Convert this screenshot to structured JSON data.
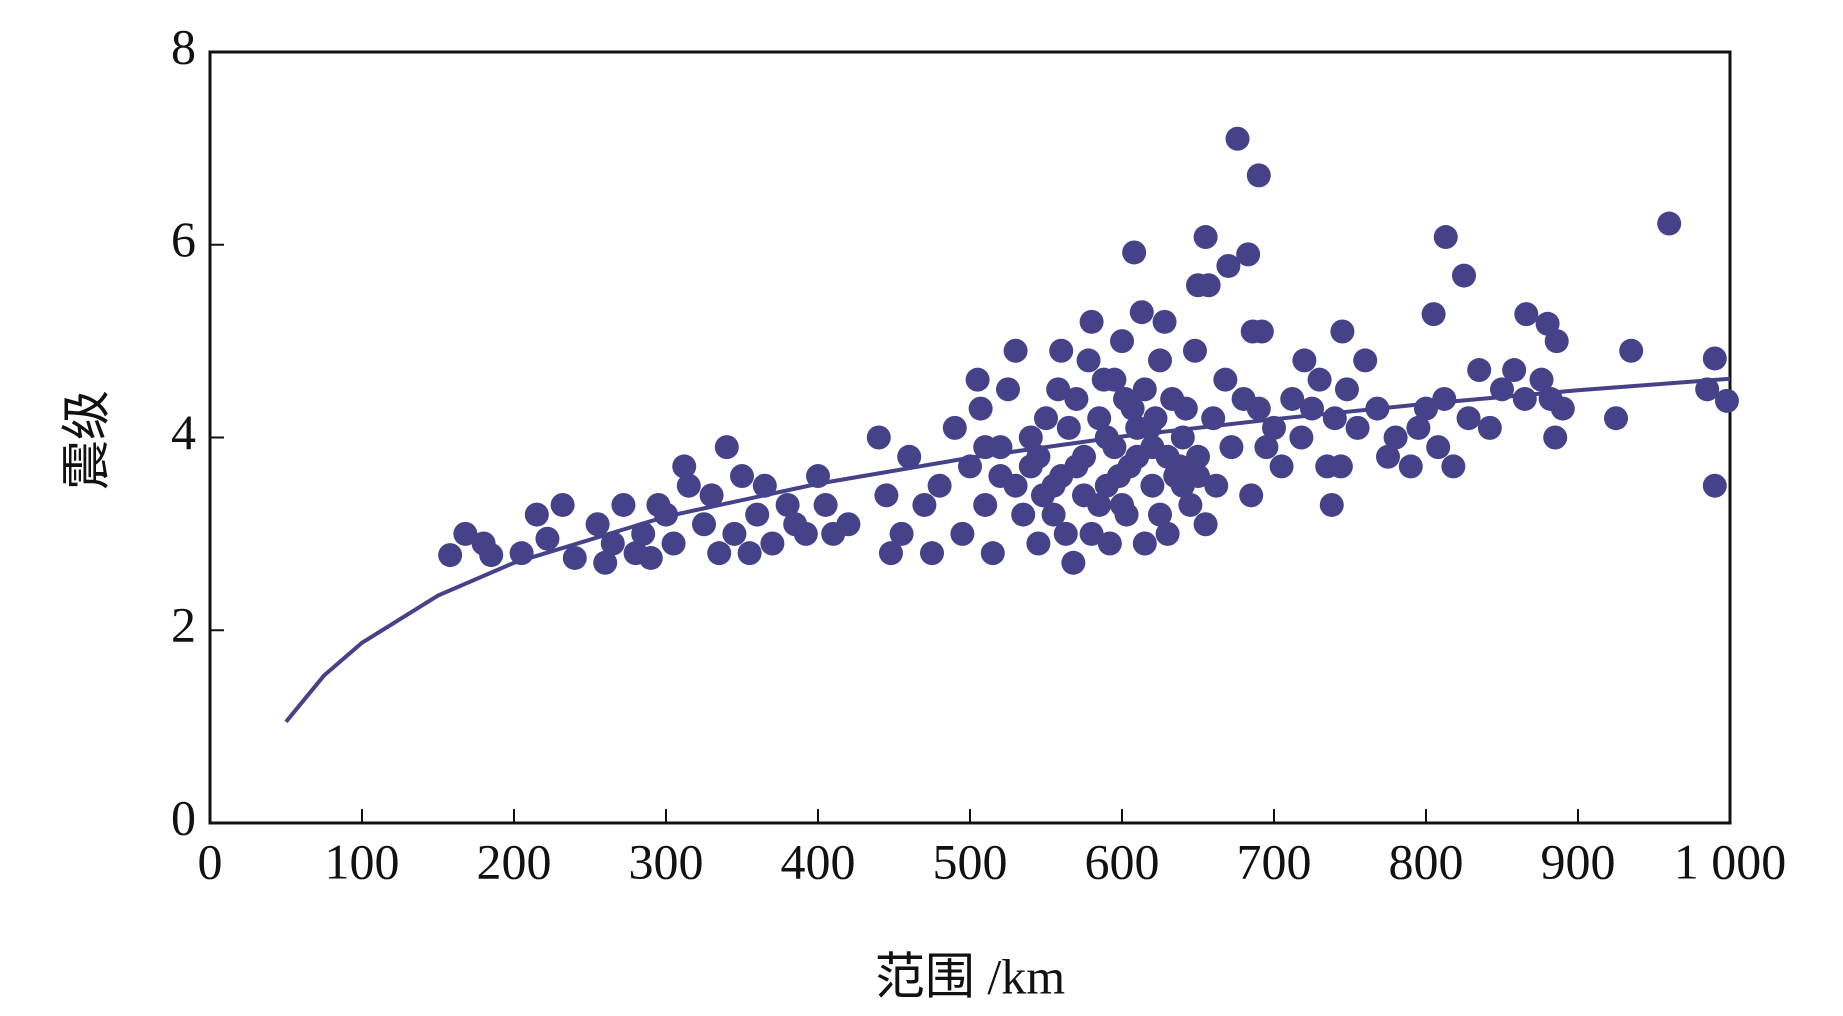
{
  "chart_data": {
    "type": "scatter",
    "x_label": "范围 /km",
    "y_label": "震级",
    "xlim": [
      0,
      1000
    ],
    "xticks": [
      0,
      100,
      200,
      300,
      400,
      500,
      600,
      700,
      800,
      900,
      {
        "value": 1000,
        "label": "1 000"
      }
    ],
    "ylim": [
      0,
      8
    ],
    "yticks": [
      0,
      2,
      4,
      6,
      8
    ],
    "series": [
      {
        "type": "scatter",
        "color": "#46428a",
        "x": [
          676,
          690,
          960,
          655,
          813,
          608,
          683,
          670,
          825,
          650,
          657,
          935,
          925,
          990,
          985,
          990,
          998,
          805,
          866,
          880,
          886,
          745,
          692,
          686,
          760,
          720,
          738,
          744,
          735,
          158,
          168,
          180,
          185,
          205,
          215,
          232,
          222,
          240,
          255,
          265,
          272,
          285,
          290,
          300,
          305,
          315,
          312,
          325,
          335,
          340,
          350,
          345,
          360,
          370,
          380,
          392,
          400,
          405,
          410,
          420,
          280,
          260,
          295,
          330,
          355,
          365,
          385,
          440,
          445,
          448,
          455,
          460,
          470,
          475,
          480,
          490,
          495,
          500,
          505,
          507,
          510,
          515,
          520,
          525,
          530,
          535,
          540,
          545,
          550,
          555,
          560,
          563,
          568,
          570,
          575,
          578,
          580,
          585,
          590,
          592,
          595,
          598,
          600,
          603,
          607,
          610,
          613,
          615,
          618,
          620,
          625,
          628,
          630,
          633,
          638,
          640,
          645,
          648,
          650,
          655,
          660,
          662,
          668,
          672,
          680,
          685,
          690,
          695,
          700,
          705,
          712,
          718,
          725,
          730,
          740,
          748,
          755,
          768,
          775,
          780,
          790,
          795,
          800,
          808,
          812,
          818,
          828,
          835,
          842,
          850,
          858,
          865,
          876,
          885,
          882,
          890,
          530,
          545,
          560,
          575,
          590,
          605,
          620,
          635,
          650,
          565,
          585,
          615,
          540,
          555,
          580,
          600,
          625,
          640,
          520,
          510,
          570,
          595,
          610,
          630,
          548,
          558,
          588,
          602,
          622,
          642
        ],
        "values": [
          7.1,
          6.72,
          6.22,
          6.08,
          6.08,
          5.92,
          5.9,
          5.78,
          5.68,
          5.58,
          5.58,
          4.9,
          4.2,
          4.82,
          4.5,
          3.5,
          4.38,
          5.28,
          5.28,
          5.18,
          5.0,
          5.1,
          5.1,
          5.1,
          4.8,
          4.8,
          3.3,
          3.7,
          3.7,
          2.78,
          3.0,
          2.9,
          2.78,
          2.8,
          3.2,
          3.3,
          2.95,
          2.75,
          3.1,
          2.9,
          3.3,
          3.0,
          2.75,
          3.2,
          2.9,
          3.5,
          3.7,
          3.1,
          2.8,
          3.9,
          3.6,
          3.0,
          3.2,
          2.9,
          3.3,
          3.0,
          3.6,
          3.3,
          3.0,
          3.1,
          2.8,
          2.7,
          3.3,
          3.4,
          2.8,
          3.5,
          3.1,
          4.0,
          3.4,
          2.8,
          3.0,
          3.8,
          3.3,
          2.8,
          3.5,
          4.1,
          3.0,
          3.7,
          4.6,
          4.3,
          3.3,
          2.8,
          3.9,
          4.5,
          4.9,
          3.2,
          3.7,
          2.9,
          4.2,
          3.5,
          4.9,
          3.0,
          2.7,
          4.4,
          3.8,
          4.8,
          5.2,
          3.3,
          4.0,
          2.9,
          4.6,
          3.6,
          5.0,
          3.2,
          4.3,
          3.8,
          5.3,
          2.9,
          4.1,
          3.5,
          4.8,
          5.2,
          3.0,
          4.4,
          3.7,
          4.0,
          3.3,
          4.9,
          3.6,
          3.1,
          4.2,
          3.5,
          4.6,
          3.9,
          4.4,
          3.4,
          4.3,
          3.9,
          4.1,
          3.7,
          4.4,
          4.0,
          4.3,
          4.6,
          4.2,
          4.5,
          4.1,
          4.3,
          3.8,
          4.0,
          3.7,
          4.1,
          4.3,
          3.9,
          4.4,
          3.7,
          4.2,
          4.7,
          4.1,
          4.5,
          4.7,
          4.4,
          4.6,
          4.0,
          4.4,
          4.3,
          3.5,
          3.8,
          3.6,
          3.4,
          3.5,
          3.7,
          3.9,
          3.6,
          3.8,
          4.1,
          4.2,
          4.5,
          4.0,
          3.2,
          3.0,
          3.3,
          3.2,
          3.5,
          3.6,
          3.9,
          3.7,
          3.9,
          4.1,
          3.8,
          3.4,
          4.5,
          4.6,
          4.4,
          4.2,
          4.3
        ]
      },
      {
        "type": "line",
        "color": "#46428a",
        "x": [
          50,
          75,
          100,
          150,
          200,
          300,
          400,
          500,
          600,
          700,
          800,
          900,
          1000
        ],
        "values": [
          1.05,
          1.53,
          1.87,
          2.36,
          2.7,
          3.18,
          3.52,
          3.79,
          4.01,
          4.19,
          4.35,
          4.49,
          4.61
        ]
      }
    ]
  }
}
